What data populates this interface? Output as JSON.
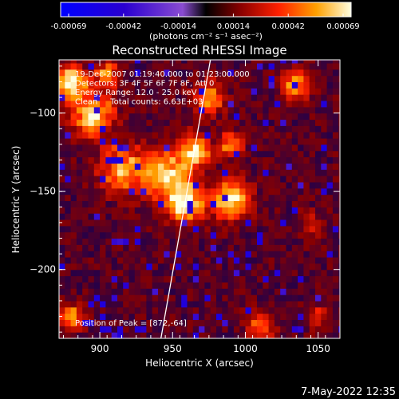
{
  "chart_data": {
    "type": "heatmap",
    "title": "Reconstructed RHESSI Image",
    "xlabel": "Heliocentric X (arcsec)",
    "ylabel": "Heliocentric Y (arcsec)",
    "xlim": [
      872,
      1065
    ],
    "ylim": [
      -244,
      -66
    ],
    "xticks": [
      900,
      950,
      1000,
      1050
    ],
    "yticks": [
      -100,
      -150,
      -200
    ],
    "colorbar": {
      "ticks": [
        "-0.00069",
        "-0.00042",
        "-0.00014",
        "0.00014",
        "0.00042",
        "0.00069"
      ],
      "unit_label": "(photons cm⁻² s⁻¹ asec⁻²)",
      "range": [
        -0.00069,
        0.00069
      ]
    },
    "info_lines": [
      "19-Dec-2007 01:19:40.000 to 01:23:00.000",
      "Detectors: 3F 4F 5F 6F 7F 8F, Att 0",
      "Energy Range: 12.0 - 25.0 keV",
      "Clean     Total counts: 6.63E+03"
    ],
    "peak_label": "Position of Peak = [872,-64]",
    "peak_position": [
      872,
      -64
    ],
    "limb_line": [
      [
        942,
        -244
      ],
      [
        976,
        -66
      ]
    ],
    "bright_regions": [
      {
        "x": 880,
        "y": -80,
        "r": 10,
        "v": 0.00069
      },
      {
        "x": 895,
        "y": -100,
        "r": 14,
        "v": 0.00055
      },
      {
        "x": 915,
        "y": -135,
        "r": 14,
        "v": 0.0005
      },
      {
        "x": 945,
        "y": -140,
        "r": 16,
        "v": 0.00055
      },
      {
        "x": 965,
        "y": -125,
        "r": 10,
        "v": 0.0006
      },
      {
        "x": 960,
        "y": -158,
        "r": 12,
        "v": 0.00062
      },
      {
        "x": 990,
        "y": -155,
        "r": 12,
        "v": 0.00058
      },
      {
        "x": 990,
        "y": -120,
        "r": 8,
        "v": 0.0004
      },
      {
        "x": 975,
        "y": -90,
        "r": 10,
        "v": 0.00045
      },
      {
        "x": 1035,
        "y": -82,
        "r": 9,
        "v": 0.00048
      },
      {
        "x": 905,
        "y": -75,
        "r": 8,
        "v": 0.0004
      },
      {
        "x": 880,
        "y": -230,
        "r": 8,
        "v": 0.00045
      },
      {
        "x": 1010,
        "y": -236,
        "r": 10,
        "v": 0.0003
      },
      {
        "x": 1045,
        "y": -170,
        "r": 8,
        "v": 0.00018
      },
      {
        "x": 1050,
        "y": -230,
        "r": 8,
        "v": 0.0002
      }
    ]
  },
  "footer": {
    "timestamp": "7-May-2022 12:35"
  }
}
